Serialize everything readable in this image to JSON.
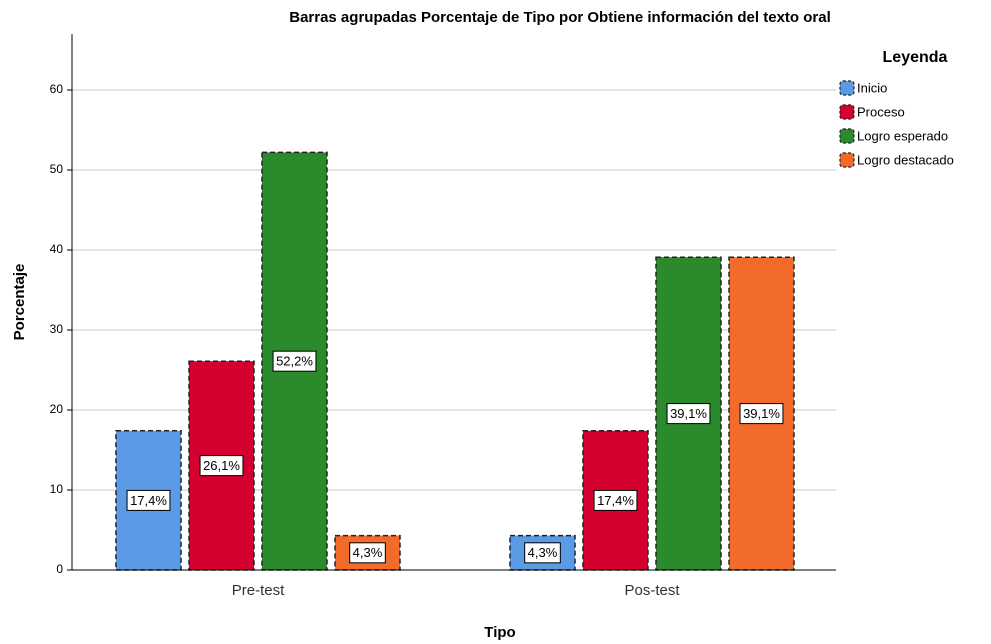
{
  "chart_data": {
    "type": "bar",
    "title": "Barras agrupadas Porcentaje de Tipo por Obtiene información del texto oral",
    "x_label": "Tipo",
    "y_label": "Porcentaje",
    "legend_title": "Leyenda",
    "categories": [
      "Pre-test",
      "Pos-test"
    ],
    "series": [
      {
        "name": "Inicio",
        "color": "#5b9be6",
        "values": [
          17.4,
          4.3
        ],
        "value_labels": [
          "17,4%",
          "4,3%"
        ]
      },
      {
        "name": "Proceso",
        "color": "#d30030",
        "values": [
          26.1,
          17.4
        ],
        "value_labels": [
          "26,1%",
          "17,4%"
        ]
      },
      {
        "name": "Logro esperado",
        "color": "#2b8a2b",
        "values": [
          52.2,
          39.1
        ],
        "value_labels": [
          "52,2%",
          "39,1%"
        ]
      },
      {
        "name": "Logro destacado",
        "color": "#f26b2b",
        "values": [
          4.3,
          39.1
        ],
        "value_labels": [
          "4,3%",
          "39,1%"
        ]
      }
    ],
    "ylim": [
      0,
      67
    ],
    "yticks": [
      0,
      10,
      20,
      30,
      40,
      50,
      60
    ],
    "grid": true,
    "legend": "right"
  }
}
